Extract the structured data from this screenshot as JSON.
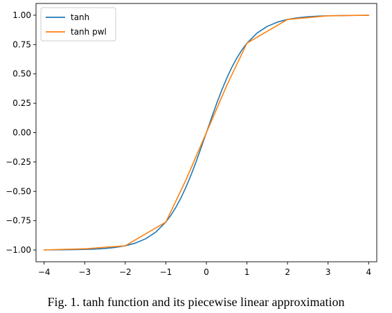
{
  "chart_data": {
    "type": "line",
    "title": "",
    "xlabel": "",
    "ylabel": "",
    "xlim": [
      -4.2,
      4.2
    ],
    "ylim": [
      -1.1,
      1.1
    ],
    "xticks": [
      -4,
      -3,
      -2,
      -1,
      0,
      1,
      2,
      3,
      4
    ],
    "xtick_labels": [
      "−4",
      "−3",
      "−2",
      "−1",
      "0",
      "1",
      "2",
      "3",
      "4"
    ],
    "yticks": [
      1.0,
      0.75,
      0.5,
      0.25,
      0.0,
      -0.25,
      -0.5,
      -0.75,
      -1.0
    ],
    "ytick_labels": [
      "1.00",
      "0.75",
      "0.50",
      "0.25",
      "0.00",
      "−0.25",
      "−0.50",
      "−0.75",
      "−1.00"
    ],
    "grid": false,
    "legend_position": "top-left",
    "series": [
      {
        "name": "tanh",
        "color": "#1f77b4",
        "x": [
          -4,
          -3.5,
          -3,
          -2.75,
          -2.5,
          -2.25,
          -2,
          -1.75,
          -1.5,
          -1.25,
          -1,
          -0.875,
          -0.75,
          -0.625,
          -0.5,
          -0.375,
          -0.25,
          -0.125,
          0,
          0.125,
          0.25,
          0.375,
          0.5,
          0.625,
          0.75,
          0.875,
          1,
          1.25,
          1.5,
          1.75,
          2,
          2.25,
          2.5,
          2.75,
          3,
          3.5,
          4
        ],
        "y": [
          -0.999,
          -0.998,
          -0.995,
          -0.992,
          -0.987,
          -0.978,
          -0.964,
          -0.941,
          -0.905,
          -0.848,
          -0.762,
          -0.704,
          -0.635,
          -0.555,
          -0.462,
          -0.358,
          -0.245,
          -0.124,
          0.0,
          0.124,
          0.245,
          0.358,
          0.462,
          0.555,
          0.635,
          0.704,
          0.762,
          0.848,
          0.905,
          0.941,
          0.964,
          0.978,
          0.987,
          0.992,
          0.995,
          0.998,
          0.999
        ]
      },
      {
        "name": "tanh pwl",
        "color": "#ff7f0e",
        "x": [
          -4,
          -3,
          -2,
          -1,
          -0.5,
          0,
          0.5,
          1,
          2,
          3,
          4
        ],
        "y": [
          -0.999,
          -0.99,
          -0.964,
          -0.762,
          -0.4,
          0.0,
          0.4,
          0.762,
          0.964,
          0.995,
          1.0
        ]
      }
    ]
  },
  "caption": "Fig. 1. tanh function and its piecewise linear approximation"
}
